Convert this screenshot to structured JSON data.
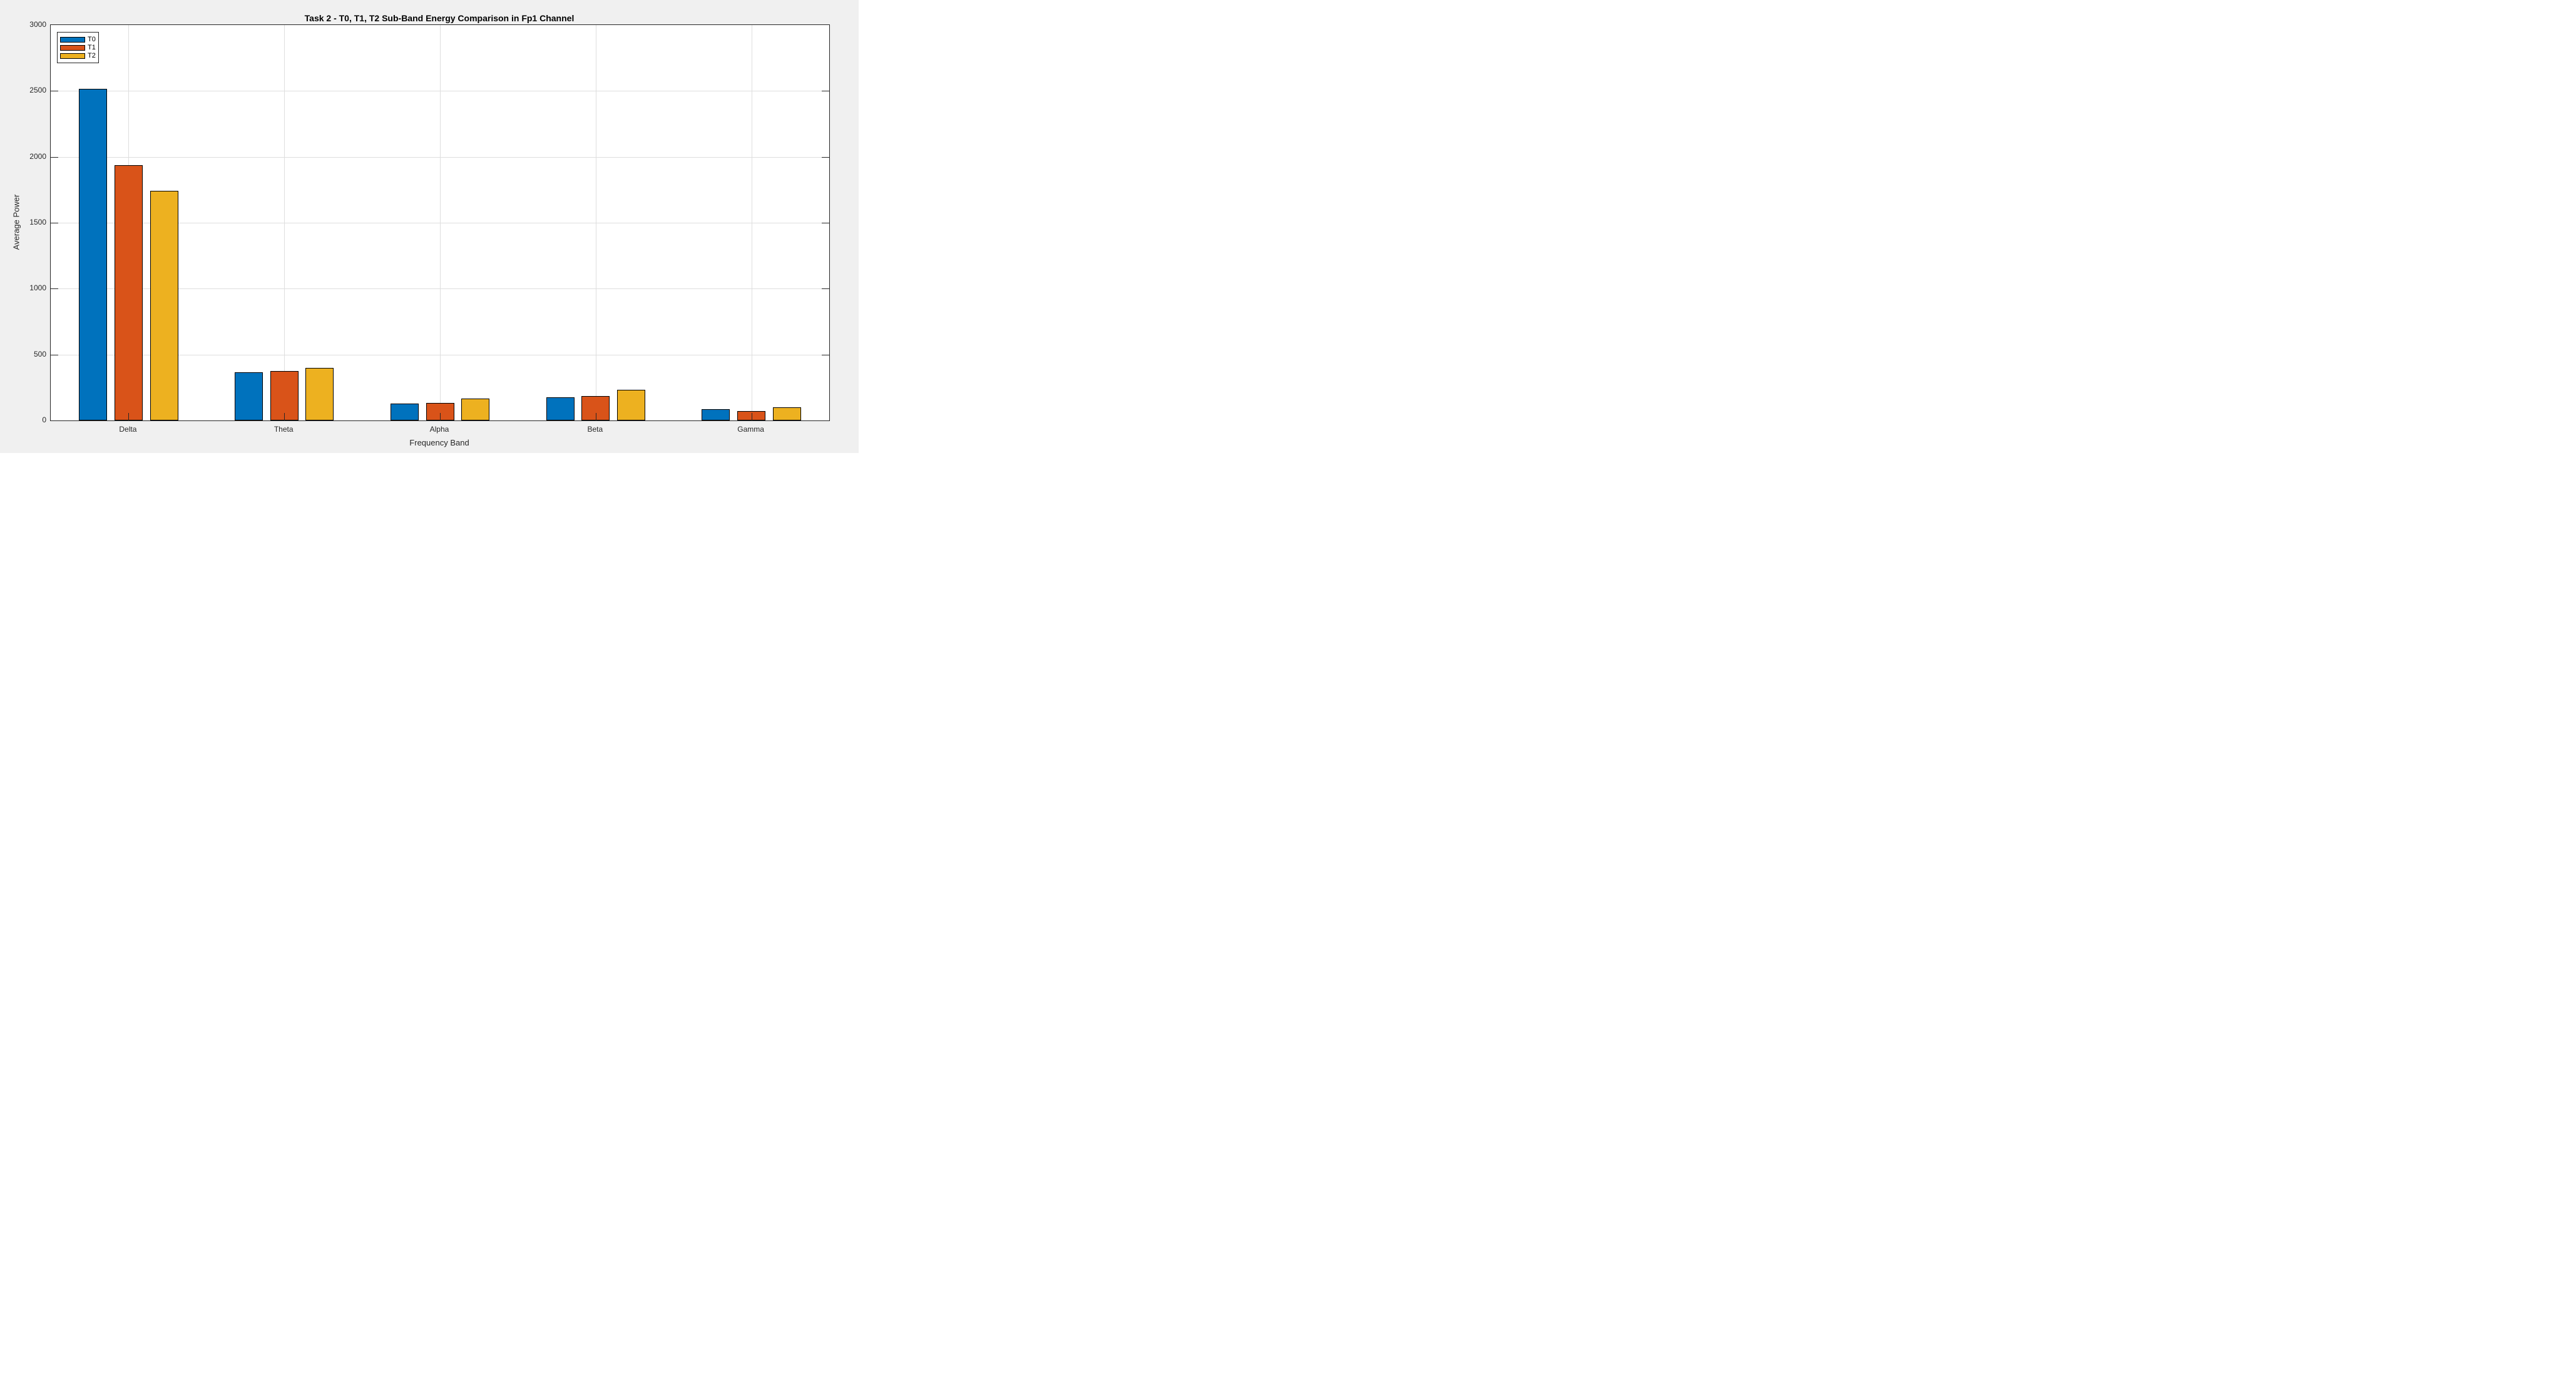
{
  "figure": {
    "background_color": "#f0f0f0",
    "plot_background_color": "#ffffff",
    "axis_color": "#262626",
    "grid_color": "#dedede",
    "bar_edge_color": "#000000"
  },
  "chart_data": {
    "type": "bar",
    "title": "Task 2 - T0, T1, T2 Sub-Band Energy Comparison in Fp1 Channel",
    "xlabel": "Frequency Band",
    "ylabel": "Average Power",
    "categories": [
      "Delta",
      "Theta",
      "Alpha",
      "Beta",
      "Gamma"
    ],
    "series": [
      {
        "name": "T0",
        "color": "#0072BD",
        "values": [
          2515,
          365,
          128,
          174,
          84
        ]
      },
      {
        "name": "T1",
        "color": "#D95319",
        "values": [
          1935,
          374,
          131,
          187,
          72
        ]
      },
      {
        "name": "T2",
        "color": "#EDB120",
        "values": [
          1740,
          400,
          165,
          234,
          102
        ]
      }
    ],
    "ylim": [
      0,
      3000
    ],
    "yticks": [
      0,
      500,
      1000,
      1500,
      2000,
      2500,
      3000
    ],
    "grid": true,
    "legend_position": "top-left"
  }
}
